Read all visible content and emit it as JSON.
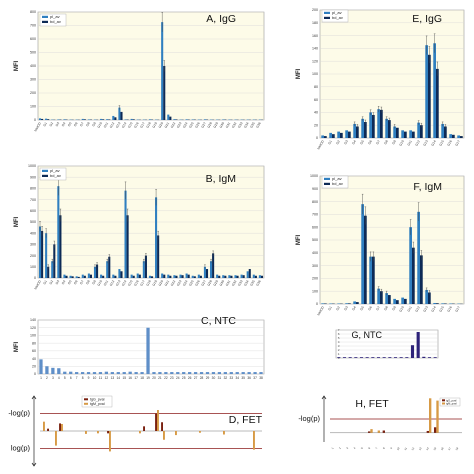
{
  "colors": {
    "pl_av": "#2f7fc0",
    "bd_av": "#0d2a56",
    "ntc_c": "#5f8fc8",
    "ntc_g": "#2e237a",
    "tg_pval": "#7a2010",
    "tm_pval": "#d79a45",
    "threshold": "#8b1a1a"
  },
  "chart_data": [
    {
      "id": "A",
      "type": "bar",
      "label": "A, IgG",
      "ylabel": "MFI",
      "yticks": [
        "0",
        "100",
        "200",
        "300",
        "400",
        "500",
        "600",
        "700",
        "800"
      ],
      "ylim": [
        0,
        800
      ],
      "legend": [
        "pl_av",
        "bd_av"
      ],
      "legend_position": "top-left",
      "categories": [
        "MetOD",
        "G1",
        "G2",
        "G3",
        "G4",
        "G5",
        "G6",
        "G7",
        "G8",
        "G9",
        "G10",
        "G11",
        "G12",
        "G13",
        "G14",
        "G15",
        "G16",
        "G17",
        "G18",
        "G19",
        "G20",
        "G21",
        "G22",
        "G23",
        "G24",
        "G25",
        "G26",
        "G27",
        "G28",
        "G29",
        "G30",
        "G31",
        "G32",
        "G33",
        "G34",
        "G35",
        "G36"
      ],
      "series": [
        {
          "name": "pl_av",
          "values": [
            12,
            10,
            3,
            4,
            5,
            3,
            3,
            8,
            4,
            3,
            8,
            6,
            30,
            92,
            4,
            8,
            3,
            3,
            5,
            3,
            725,
            40,
            6,
            3,
            5,
            4,
            3,
            5,
            3,
            3,
            4,
            3,
            3,
            3,
            3,
            3,
            3
          ]
        },
        {
          "name": "bd_av",
          "values": [
            8,
            6,
            2,
            3,
            3,
            2,
            2,
            5,
            3,
            2,
            5,
            4,
            20,
            60,
            3,
            5,
            2,
            2,
            3,
            2,
            400,
            25,
            4,
            2,
            3,
            3,
            2,
            3,
            2,
            2,
            3,
            2,
            2,
            2,
            2,
            2,
            2
          ]
        }
      ]
    },
    {
      "id": "B",
      "type": "bar",
      "label": "B, IgM",
      "ylabel": "MFI",
      "yticks": [
        "0",
        "100",
        "200",
        "300",
        "400",
        "500",
        "600",
        "700",
        "800",
        "900",
        "1000"
      ],
      "ylim": [
        0,
        1000
      ],
      "legend": [
        "pl_av",
        "bd_av"
      ],
      "legend_position": "top-left",
      "categories": [
        "MetOD",
        "G1",
        "G2",
        "G3",
        "G4",
        "G5",
        "G6",
        "G7",
        "G8",
        "G9",
        "G10",
        "G11",
        "G12",
        "G13",
        "G14",
        "G15",
        "G16",
        "G17",
        "G18",
        "G19",
        "G20",
        "G21",
        "G22",
        "G23",
        "G24",
        "G25",
        "G26",
        "G27",
        "G28",
        "G29",
        "G30",
        "G31",
        "G32",
        "G33",
        "G34",
        "G35",
        "G36"
      ],
      "series": [
        {
          "name": "pl_av",
          "values": [
            460,
            400,
            150,
            820,
            30,
            20,
            15,
            30,
            40,
            100,
            30,
            150,
            30,
            80,
            780,
            30,
            40,
            150,
            20,
            720,
            40,
            30,
            25,
            30,
            40,
            20,
            30,
            100,
            150,
            30,
            25,
            25,
            25,
            30,
            60,
            30,
            25
          ]
        },
        {
          "name": "bd_av",
          "values": [
            420,
            100,
            300,
            560,
            20,
            15,
            10,
            20,
            30,
            120,
            20,
            190,
            20,
            60,
            560,
            20,
            30,
            200,
            15,
            380,
            30,
            20,
            20,
            25,
            30,
            15,
            20,
            80,
            220,
            20,
            20,
            20,
            20,
            25,
            80,
            20,
            20
          ]
        }
      ]
    },
    {
      "id": "C",
      "type": "bar",
      "label": "C, NTC",
      "ylabel": "MFI",
      "yticks": [
        "0",
        "20",
        "40",
        "60",
        "80",
        "100",
        "120",
        "140"
      ],
      "ylim": [
        0,
        140
      ],
      "categories": [
        "1",
        "2",
        "3",
        "4",
        "5",
        "6",
        "7",
        "8",
        "9",
        "10",
        "11",
        "12",
        "13",
        "14",
        "15",
        "16",
        "17",
        "18",
        "19",
        "20",
        "21",
        "22",
        "23",
        "24",
        "25",
        "26",
        "27",
        "28",
        "29",
        "30",
        "31",
        "32",
        "33",
        "34",
        "35",
        "36",
        "37",
        "38"
      ],
      "series": [
        {
          "name": "NTC",
          "values": [
            38,
            20,
            16,
            15,
            6,
            6,
            5,
            5,
            5,
            5,
            5,
            6,
            5,
            5,
            5,
            6,
            5,
            5,
            120,
            5,
            5,
            5,
            5,
            5,
            5,
            5,
            5,
            5,
            5,
            5,
            5,
            5,
            5,
            5,
            5,
            5,
            5,
            5
          ]
        }
      ]
    },
    {
      "id": "D",
      "type": "bar",
      "label": "D, FET",
      "ylabel_top": "-log(p)",
      "ylabel_bottom": "log(p)",
      "legend": [
        "tgG_pval",
        "tgM_pval"
      ],
      "legend_position": "top-center",
      "categories": [
        "1",
        "2",
        "3",
        "4",
        "5",
        "6",
        "7",
        "8",
        "9",
        "10",
        "11",
        "12",
        "13",
        "14",
        "15",
        "16",
        "17",
        "18",
        "19",
        "20",
        "21",
        "22",
        "23",
        "24",
        "25",
        "26",
        "27",
        "28",
        "29",
        "30",
        "31",
        "32",
        "33",
        "34",
        "35",
        "36",
        "37"
      ],
      "ylim": [
        -6,
        6
      ],
      "threshold": 3,
      "series": [
        {
          "name": "tgG_pval",
          "values": [
            0,
            0.4,
            0,
            1.3,
            0,
            0,
            0,
            0,
            0,
            0,
            0,
            -0.4,
            0,
            0,
            0,
            0,
            0,
            0.8,
            0,
            3.0,
            1.5,
            0,
            0,
            0,
            0,
            0,
            0,
            0,
            0,
            0,
            0,
            0,
            0,
            0,
            0,
            0,
            0
          ]
        },
        {
          "name": "tgM_pval",
          "values": [
            1.6,
            0,
            -2.5,
            1.2,
            0,
            0,
            0,
            -0.5,
            0,
            -0.4,
            0,
            -3.5,
            0,
            0,
            0,
            0,
            -0.4,
            0,
            0,
            3.6,
            -1.5,
            0,
            -0.7,
            0,
            0,
            0,
            -0.3,
            0,
            0,
            0,
            -0.6,
            0,
            0,
            0,
            0,
            -3.2,
            0
          ]
        }
      ]
    },
    {
      "id": "E",
      "type": "bar",
      "label": "E, IgG",
      "ylabel": "MFI",
      "yticks": [
        "0",
        "20",
        "40",
        "60",
        "80",
        "100",
        "120",
        "140",
        "160",
        "180",
        "200"
      ],
      "ylim": [
        0,
        200
      ],
      "legend": [
        "pl_av",
        "bd_av"
      ],
      "legend_position": "top-left",
      "categories": [
        "MetOD",
        "G1",
        "G2",
        "G3",
        "G4",
        "G5",
        "G6",
        "G7",
        "G8",
        "G9",
        "G10",
        "G11",
        "G12",
        "G13",
        "G14",
        "G15",
        "G16",
        "G17"
      ],
      "series": [
        {
          "name": "pl_av",
          "values": [
            4,
            8,
            10,
            12,
            22,
            30,
            40,
            45,
            30,
            18,
            12,
            12,
            24,
            145,
            148,
            22,
            6,
            4
          ]
        },
        {
          "name": "bd_av",
          "values": [
            3,
            6,
            8,
            10,
            18,
            25,
            36,
            44,
            28,
            16,
            10,
            10,
            20,
            130,
            108,
            18,
            5,
            3
          ]
        }
      ]
    },
    {
      "id": "F",
      "type": "bar",
      "label": "F, IgM",
      "ylabel": "MFI",
      "yticks": [
        "0",
        "100",
        "200",
        "300",
        "400",
        "500",
        "600",
        "700",
        "800",
        "900",
        "1000"
      ],
      "ylim": [
        0,
        1000
      ],
      "legend": [
        "pl_av",
        "bd_av"
      ],
      "legend_position": "top-left",
      "categories": [
        "MetOD",
        "G1",
        "G2",
        "G3",
        "G4",
        "G5",
        "G6",
        "G7",
        "G8",
        "G9",
        "G10",
        "G11",
        "G12",
        "G13",
        "G14",
        "G15",
        "G16",
        "G17"
      ],
      "series": [
        {
          "name": "pl_av",
          "values": [
            5,
            4,
            4,
            6,
            20,
            780,
            370,
            120,
            85,
            40,
            50,
            600,
            720,
            110,
            8,
            5,
            4,
            3
          ]
        },
        {
          "name": "bd_av",
          "values": [
            4,
            3,
            3,
            5,
            15,
            690,
            370,
            100,
            70,
            30,
            40,
            440,
            380,
            90,
            6,
            4,
            3,
            2
          ]
        }
      ]
    },
    {
      "id": "G",
      "type": "bar",
      "label": "G, NTC",
      "yticks": [
        "0",
        "1",
        "2",
        "3",
        "4",
        "5",
        "6",
        "7"
      ],
      "ylim": [
        0,
        7
      ],
      "categories": [
        "1",
        "2",
        "3",
        "4",
        "5",
        "6",
        "7",
        "8",
        "9",
        "10",
        "11",
        "12",
        "13",
        "14",
        "15",
        "16",
        "17",
        "18"
      ],
      "series": [
        {
          "name": "NTC",
          "values": [
            0.2,
            0.2,
            0.2,
            0.2,
            0.2,
            0.2,
            0.2,
            0.2,
            0.2,
            0.2,
            0.2,
            0.2,
            0.2,
            3.2,
            6.5,
            0.3,
            0.2,
            0.2
          ]
        }
      ]
    },
    {
      "id": "H",
      "type": "bar",
      "label": "H, FET",
      "ylabel_top": "-log(p)",
      "legend": [
        "tgG_pval",
        "tgM_pval"
      ],
      "legend_position": "top-right",
      "categories": [
        "1",
        "2",
        "3",
        "4",
        "5",
        "6",
        "7",
        "8",
        "9",
        "10",
        "11",
        "12",
        "13",
        "14",
        "15",
        "16",
        "17",
        "18"
      ],
      "ylim": [
        -2,
        8
      ],
      "threshold": 3,
      "series": [
        {
          "name": "tgG_pval",
          "values": [
            0,
            0,
            0,
            0,
            0,
            0.3,
            0,
            0.5,
            0,
            0,
            0,
            0,
            0,
            0.4,
            1.2,
            0,
            0,
            0
          ]
        },
        {
          "name": "tgM_pval",
          "values": [
            0,
            0,
            0,
            0,
            0,
            0.8,
            0.5,
            0,
            0,
            0,
            0,
            0,
            0,
            7.5,
            7.0,
            0,
            0,
            0
          ]
        }
      ]
    }
  ]
}
